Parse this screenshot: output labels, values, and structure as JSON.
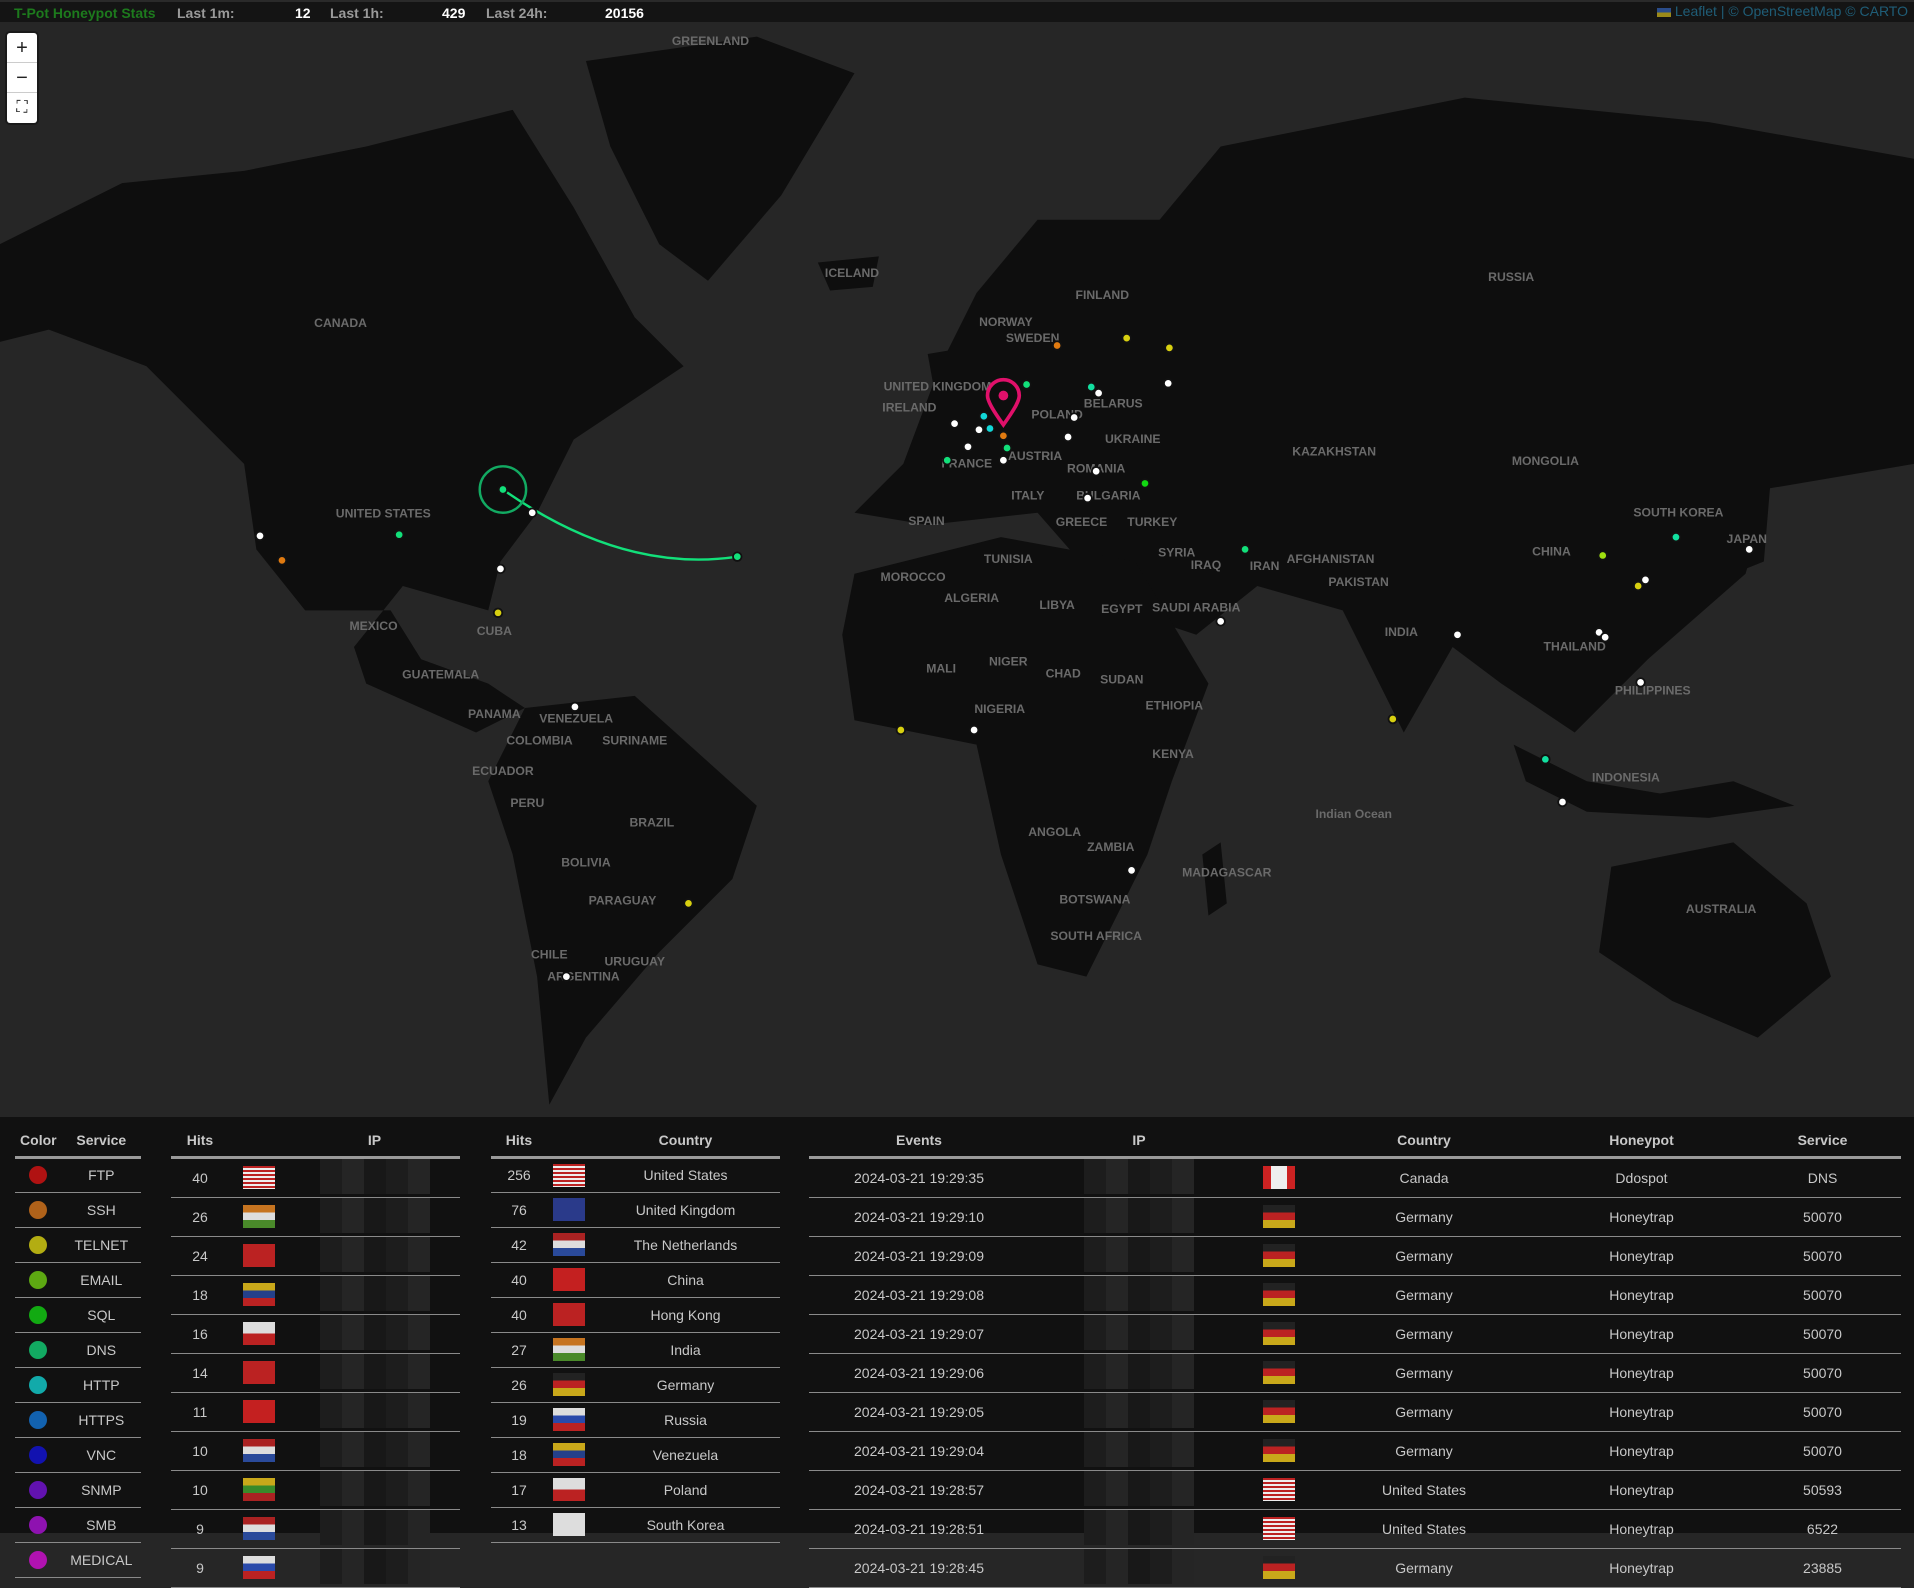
{
  "topbar": {
    "title": "T-Pot Honeypot Stats",
    "last1m_label": "Last 1m:",
    "last1m": "12",
    "last1h_label": "Last 1h:",
    "last1h": "429",
    "last24h_label": "Last 24h:",
    "last24h": "20156"
  },
  "attribution": {
    "leaflet": "Leaflet",
    "sep": "|",
    "osm": "© OpenStreetMap",
    "carto": "© CARTO"
  },
  "controls": {
    "zoom_in": "+",
    "zoom_out": "−",
    "fullscreen": "⛶"
  },
  "map": {
    "labels": [
      "GREENLAND",
      "CANADA",
      "UNITED STATES",
      "MEXICO",
      "CUBA",
      "GUATEMALA",
      "PANAMA",
      "VENEZUELA",
      "COLOMBIA",
      "SURINAME",
      "ECUADOR",
      "PERU",
      "BRAZIL",
      "BOLIVIA",
      "PARAGUAY",
      "CHILE",
      "ARGENTINA",
      "URUGUAY",
      "ICELAND",
      "NORWAY",
      "SWEDEN",
      "FINLAND",
      "UNITED KINGDOM",
      "IRELAND",
      "FRANCE",
      "SPAIN",
      "ITALY",
      "POLAND",
      "BELARUS",
      "UKRAINE",
      "AUSTRIA",
      "ROMANIA",
      "BULGARIA",
      "GREECE",
      "TURKEY",
      "RUSSIA",
      "KAZAKHSTAN",
      "MONGOLIA",
      "CHINA",
      "INDIA",
      "IRAN",
      "IRAQ",
      "SYRIA",
      "SAUDI ARABIA",
      "EGYPT",
      "LIBYA",
      "ALGERIA",
      "MOROCCO",
      "TUNISIA",
      "MALI",
      "NIGER",
      "CHAD",
      "SUDAN",
      "NIGERIA",
      "ETHIOPIA",
      "KENYA",
      "ANGOLA",
      "ZAMBIA",
      "BOTSWANA",
      "SOUTH AFRICA",
      "MADAGASCAR",
      "AUSTRALIA",
      "INDONESIA",
      "JAPAN",
      "SOUTH KOREA",
      "PHILIPPINES",
      "THAILAND",
      "PAKISTAN",
      "AFGHANISTAN",
      "Indian Ocean"
    ]
  },
  "legend": {
    "headers": [
      "Color",
      "Service"
    ],
    "items": [
      {
        "service": "FTP",
        "color": "#b01212"
      },
      {
        "service": "SSH",
        "color": "#b0621a"
      },
      {
        "service": "TELNET",
        "color": "#b3ad12"
      },
      {
        "service": "EMAIL",
        "color": "#5da812"
      },
      {
        "service": "SQL",
        "color": "#12aa12"
      },
      {
        "service": "DNS",
        "color": "#12aa62"
      },
      {
        "service": "HTTP",
        "color": "#12aaaa"
      },
      {
        "service": "HTTPS",
        "color": "#1262b0"
      },
      {
        "service": "VNC",
        "color": "#1212b0"
      },
      {
        "service": "SNMP",
        "color": "#6212b0"
      },
      {
        "service": "SMB",
        "color": "#8e12b0"
      },
      {
        "service": "MEDICAL",
        "color": "#b012b0"
      }
    ]
  },
  "ip_table": {
    "headers": [
      "Hits",
      "IP"
    ],
    "rows": [
      {
        "hits": "40",
        "flag": "us"
      },
      {
        "hits": "26",
        "flag": "in"
      },
      {
        "hits": "24",
        "flag": "hk"
      },
      {
        "hits": "18",
        "flag": "ve"
      },
      {
        "hits": "16",
        "flag": "pl"
      },
      {
        "hits": "14",
        "flag": "hk"
      },
      {
        "hits": "11",
        "flag": "cn"
      },
      {
        "hits": "10",
        "flag": "nl"
      },
      {
        "hits": "10",
        "flag": "lt"
      },
      {
        "hits": "9",
        "flag": "nl"
      },
      {
        "hits": "9",
        "flag": "ru"
      }
    ]
  },
  "country_table": {
    "headers": [
      "Hits",
      "Country"
    ],
    "rows": [
      {
        "hits": "256",
        "flag": "us",
        "country": "United States"
      },
      {
        "hits": "76",
        "flag": "gb",
        "country": "United Kingdom"
      },
      {
        "hits": "42",
        "flag": "nl",
        "country": "The Netherlands"
      },
      {
        "hits": "40",
        "flag": "cn",
        "country": "China"
      },
      {
        "hits": "40",
        "flag": "hk",
        "country": "Hong Kong"
      },
      {
        "hits": "27",
        "flag": "in",
        "country": "India"
      },
      {
        "hits": "26",
        "flag": "de",
        "country": "Germany"
      },
      {
        "hits": "19",
        "flag": "ru",
        "country": "Russia"
      },
      {
        "hits": "18",
        "flag": "ve",
        "country": "Venezuela"
      },
      {
        "hits": "17",
        "flag": "pl",
        "country": "Poland"
      },
      {
        "hits": "13",
        "flag": "kr",
        "country": "South Korea"
      }
    ]
  },
  "events_table": {
    "headers": [
      "Events",
      "IP",
      "",
      "Country",
      "Honeypot",
      "Service"
    ],
    "rows": [
      {
        "time": "2024-03-21 19:29:35",
        "flag": "ca",
        "country": "Canada",
        "honeypot": "Ddospot",
        "service": "DNS"
      },
      {
        "time": "2024-03-21 19:29:10",
        "flag": "de",
        "country": "Germany",
        "honeypot": "Honeytrap",
        "service": "50070"
      },
      {
        "time": "2024-03-21 19:29:09",
        "flag": "de",
        "country": "Germany",
        "honeypot": "Honeytrap",
        "service": "50070"
      },
      {
        "time": "2024-03-21 19:29:08",
        "flag": "de",
        "country": "Germany",
        "honeypot": "Honeytrap",
        "service": "50070"
      },
      {
        "time": "2024-03-21 19:29:07",
        "flag": "de",
        "country": "Germany",
        "honeypot": "Honeytrap",
        "service": "50070"
      },
      {
        "time": "2024-03-21 19:29:06",
        "flag": "de",
        "country": "Germany",
        "honeypot": "Honeytrap",
        "service": "50070"
      },
      {
        "time": "2024-03-21 19:29:05",
        "flag": "de",
        "country": "Germany",
        "honeypot": "Honeytrap",
        "service": "50070"
      },
      {
        "time": "2024-03-21 19:29:04",
        "flag": "de",
        "country": "Germany",
        "honeypot": "Honeytrap",
        "service": "50070"
      },
      {
        "time": "2024-03-21 19:28:57",
        "flag": "us",
        "country": "United States",
        "honeypot": "Honeytrap",
        "service": "50593"
      },
      {
        "time": "2024-03-21 19:28:51",
        "flag": "us",
        "country": "United States",
        "honeypot": "Honeytrap",
        "service": "6522"
      },
      {
        "time": "2024-03-21 19:28:45",
        "flag": "de",
        "country": "Germany",
        "honeypot": "Honeytrap",
        "service": "23885"
      }
    ]
  }
}
